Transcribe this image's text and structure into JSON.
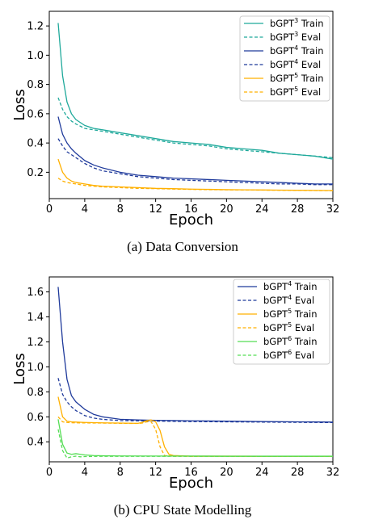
{
  "chart_data": [
    {
      "type": "line",
      "caption": "(a) Data Conversion",
      "xlabel": "Epoch",
      "ylabel": "Loss",
      "xlim": [
        0,
        32
      ],
      "ylim": [
        0.02,
        1.3
      ],
      "xticks": [
        0,
        4,
        8,
        12,
        16,
        20,
        24,
        28,
        32
      ],
      "yticks": [
        0.2,
        0.4,
        0.6,
        0.8,
        1.0,
        1.2
      ],
      "ytick_labels": [
        "0.2",
        "0.4",
        "0.6",
        "0.8",
        "1.0",
        "1.2"
      ],
      "grid": false,
      "legend_position": "top-right",
      "series": [
        {
          "name": "bGPT³ Train",
          "base": "bGPT",
          "sup": "3",
          "suffix": " Train",
          "color": "#1fa99b",
          "dash": "solid",
          "x": [
            1,
            1.5,
            2,
            2.5,
            3,
            4,
            5,
            6,
            8,
            10,
            12,
            14,
            16,
            18,
            20,
            22,
            24,
            26,
            28,
            30,
            32
          ],
          "y": [
            1.22,
            0.86,
            0.68,
            0.6,
            0.56,
            0.52,
            0.5,
            0.49,
            0.47,
            0.45,
            0.43,
            0.41,
            0.4,
            0.39,
            0.37,
            0.36,
            0.35,
            0.33,
            0.32,
            0.31,
            0.29
          ]
        },
        {
          "name": "bGPT³ Eval",
          "base": "bGPT",
          "sup": "3",
          "suffix": " Eval",
          "color": "#1fa99b",
          "dash": "dashed",
          "x": [
            1,
            1.5,
            2,
            2.5,
            3,
            4,
            5,
            6,
            8,
            10,
            12,
            14,
            16,
            18,
            20,
            22,
            24,
            26,
            28,
            30,
            32
          ],
          "y": [
            0.71,
            0.63,
            0.58,
            0.55,
            0.53,
            0.5,
            0.49,
            0.48,
            0.46,
            0.44,
            0.42,
            0.4,
            0.39,
            0.38,
            0.36,
            0.35,
            0.34,
            0.33,
            0.32,
            0.31,
            0.3
          ]
        },
        {
          "name": "bGPT⁴ Train",
          "base": "bGPT",
          "sup": "4",
          "suffix": " Train",
          "color": "#1f3a9b",
          "dash": "solid",
          "x": [
            1,
            1.5,
            2,
            2.5,
            3,
            4,
            5,
            6,
            8,
            10,
            12,
            14,
            16,
            18,
            20,
            22,
            24,
            26,
            28,
            30,
            32
          ],
          "y": [
            0.58,
            0.46,
            0.4,
            0.36,
            0.33,
            0.28,
            0.25,
            0.23,
            0.2,
            0.18,
            0.17,
            0.16,
            0.155,
            0.15,
            0.145,
            0.14,
            0.135,
            0.13,
            0.125,
            0.12,
            0.12
          ]
        },
        {
          "name": "bGPT⁴ Eval",
          "base": "bGPT",
          "sup": "4",
          "suffix": " Eval",
          "color": "#1f3a9b",
          "dash": "dashed",
          "x": [
            1,
            1.5,
            2,
            2.5,
            3,
            4,
            5,
            6,
            8,
            10,
            12,
            14,
            16,
            18,
            20,
            22,
            24,
            26,
            28,
            30,
            32
          ],
          "y": [
            0.43,
            0.38,
            0.34,
            0.32,
            0.3,
            0.26,
            0.23,
            0.21,
            0.19,
            0.17,
            0.16,
            0.15,
            0.145,
            0.14,
            0.135,
            0.13,
            0.125,
            0.12,
            0.12,
            0.115,
            0.115
          ]
        },
        {
          "name": "bGPT⁵ Train",
          "base": "bGPT",
          "sup": "5",
          "suffix": " Train",
          "color": "#ffb000",
          "dash": "solid",
          "x": [
            1,
            1.5,
            2,
            2.5,
            3,
            4,
            5,
            6,
            8,
            10,
            12,
            14,
            16,
            18,
            20,
            22,
            24,
            26,
            28,
            30,
            32
          ],
          "y": [
            0.29,
            0.2,
            0.16,
            0.14,
            0.13,
            0.12,
            0.11,
            0.105,
            0.1,
            0.095,
            0.09,
            0.088,
            0.085,
            0.083,
            0.081,
            0.08,
            0.079,
            0.078,
            0.077,
            0.076,
            0.075
          ]
        },
        {
          "name": "bGPT⁵ Eval",
          "base": "bGPT",
          "sup": "5",
          "suffix": " Eval",
          "color": "#ffb000",
          "dash": "dashed",
          "x": [
            1,
            1.5,
            2,
            2.5,
            3,
            4,
            5,
            6,
            8,
            10,
            12,
            14,
            16,
            18,
            20,
            22,
            24,
            26,
            28,
            30,
            32
          ],
          "y": [
            0.16,
            0.14,
            0.13,
            0.125,
            0.12,
            0.11,
            0.105,
            0.1,
            0.095,
            0.09,
            0.088,
            0.085,
            0.083,
            0.081,
            0.08,
            0.079,
            0.078,
            0.077,
            0.076,
            0.075,
            0.074
          ]
        }
      ]
    },
    {
      "type": "line",
      "caption": "(b) CPU State Modelling",
      "xlabel": "Epoch",
      "ylabel": "Loss",
      "xlim": [
        0,
        32
      ],
      "ylim": [
        0.24,
        1.72
      ],
      "xticks": [
        0,
        4,
        8,
        12,
        16,
        20,
        24,
        28,
        32
      ],
      "yticks": [
        0.4,
        0.6,
        0.8,
        1.0,
        1.2,
        1.4,
        1.6
      ],
      "ytick_labels": [
        "0.4",
        "0.6",
        "0.8",
        "1.0",
        "1.2",
        "1.4",
        "1.6"
      ],
      "grid": false,
      "legend_position": "top-right",
      "series": [
        {
          "name": "bGPT⁴ Train",
          "base": "bGPT",
          "sup": "4",
          "suffix": " Train",
          "color": "#1f3a9b",
          "dash": "solid",
          "x": [
            1,
            1.5,
            2,
            2.5,
            3,
            4,
            5,
            6,
            8,
            10,
            12,
            14,
            16,
            20,
            24,
            28,
            32
          ],
          "y": [
            1.64,
            1.2,
            0.9,
            0.77,
            0.72,
            0.66,
            0.62,
            0.6,
            0.58,
            0.575,
            0.572,
            0.57,
            0.568,
            0.565,
            0.562,
            0.56,
            0.558
          ]
        },
        {
          "name": "bGPT⁴ Eval",
          "base": "bGPT",
          "sup": "4",
          "suffix": " Eval",
          "color": "#1f3a9b",
          "dash": "dashed",
          "x": [
            1,
            1.5,
            2,
            2.5,
            3,
            4,
            5,
            6,
            8,
            10,
            12,
            14,
            16,
            20,
            24,
            28,
            32
          ],
          "y": [
            0.91,
            0.78,
            0.72,
            0.68,
            0.65,
            0.61,
            0.59,
            0.58,
            0.57,
            0.568,
            0.566,
            0.564,
            0.562,
            0.56,
            0.558,
            0.556,
            0.554
          ]
        },
        {
          "name": "bGPT⁵ Train",
          "base": "bGPT",
          "sup": "5",
          "suffix": " Train",
          "color": "#ffb000",
          "dash": "solid",
          "x": [
            1,
            1.5,
            2,
            2.5,
            3,
            4,
            6,
            8,
            10,
            10.5,
            11,
            11.5,
            12,
            12.5,
            13,
            13.5,
            14,
            16,
            20,
            24,
            28,
            32
          ],
          "y": [
            0.76,
            0.6,
            0.565,
            0.56,
            0.558,
            0.555,
            0.552,
            0.55,
            0.548,
            0.555,
            0.57,
            0.575,
            0.56,
            0.49,
            0.36,
            0.3,
            0.29,
            0.285,
            0.285,
            0.284,
            0.284,
            0.284
          ]
        },
        {
          "name": "bGPT⁵ Eval",
          "base": "bGPT",
          "sup": "5",
          "suffix": " Eval",
          "color": "#ffb000",
          "dash": "dashed",
          "x": [
            1,
            1.5,
            2,
            2.5,
            3,
            4,
            6,
            8,
            10,
            10.5,
            11,
            11.5,
            12,
            12.5,
            13,
            14,
            16,
            20,
            24,
            28,
            32
          ],
          "y": [
            0.6,
            0.56,
            0.555,
            0.553,
            0.552,
            0.551,
            0.55,
            0.548,
            0.547,
            0.55,
            0.56,
            0.56,
            0.5,
            0.36,
            0.29,
            0.285,
            0.284,
            0.284,
            0.283,
            0.283,
            0.283
          ]
        },
        {
          "name": "bGPT⁶ Train",
          "base": "bGPT",
          "sup": "6",
          "suffix": " Train",
          "color": "#55dd55",
          "dash": "solid",
          "x": [
            1,
            1.5,
            2,
            2.5,
            3,
            3.5,
            4,
            5,
            6,
            8,
            12,
            16,
            20,
            24,
            28,
            32
          ],
          "y": [
            0.58,
            0.38,
            0.31,
            0.3,
            0.305,
            0.3,
            0.295,
            0.29,
            0.288,
            0.287,
            0.286,
            0.286,
            0.285,
            0.285,
            0.285,
            0.285
          ]
        },
        {
          "name": "bGPT⁶ Eval",
          "base": "bGPT",
          "sup": "6",
          "suffix": " Eval",
          "color": "#55dd55",
          "dash": "dashed",
          "x": [
            1,
            1.5,
            2,
            2.5,
            3,
            3.5,
            4,
            5,
            6,
            8,
            12,
            16,
            20,
            24,
            28,
            32
          ],
          "y": [
            0.5,
            0.33,
            0.27,
            0.28,
            0.285,
            0.28,
            0.282,
            0.283,
            0.284,
            0.284,
            0.284,
            0.284,
            0.284,
            0.284,
            0.284,
            0.284
          ]
        }
      ]
    }
  ]
}
